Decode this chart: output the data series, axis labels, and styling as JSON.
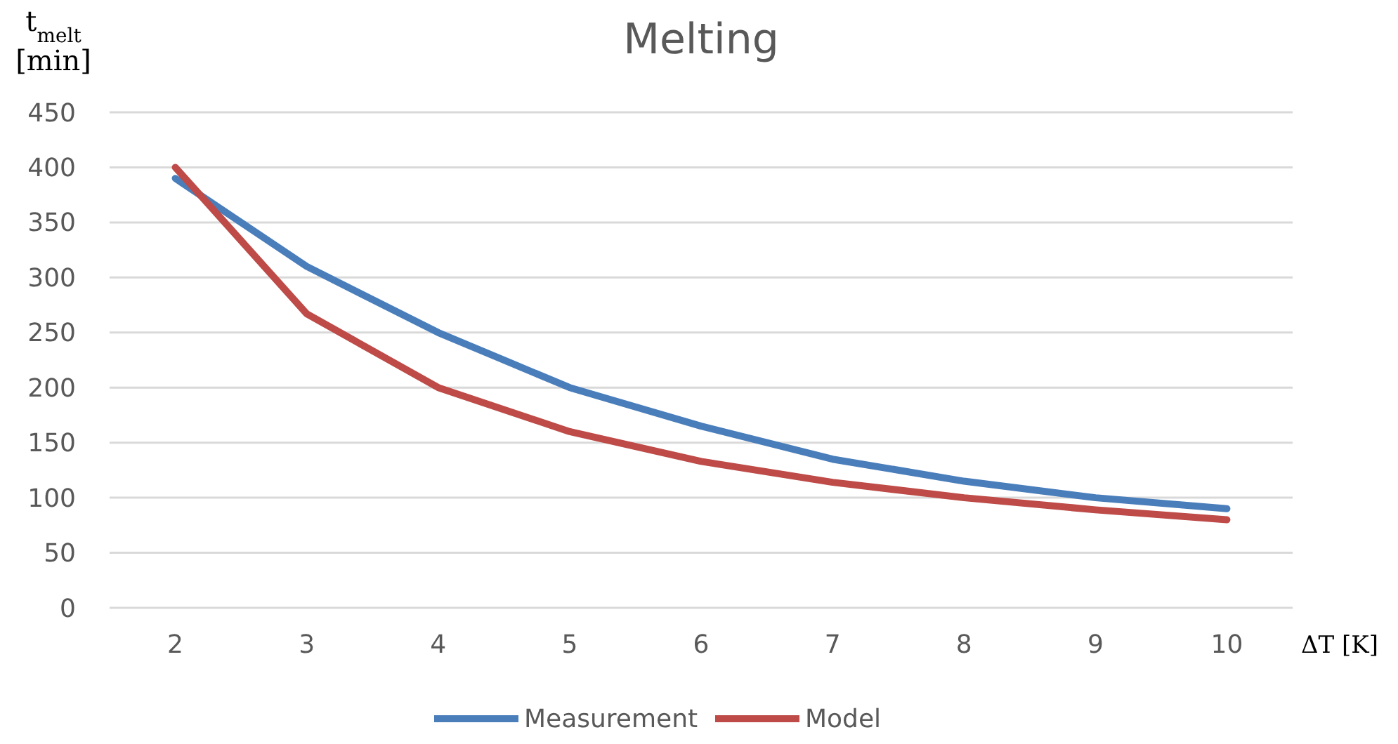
{
  "chart_data": {
    "type": "line",
    "title": "Melting",
    "xlabel": "ΔT [K]",
    "ylabel": "t$_{melt}$ [min]",
    "categories": [
      "2",
      "3",
      "4",
      "5",
      "6",
      "7",
      "8",
      "9",
      "10"
    ],
    "series": [
      {
        "name": "Measurement",
        "color": "#4a7ebb",
        "values": [
          390,
          310,
          250,
          200,
          165,
          135,
          115,
          100,
          90
        ]
      },
      {
        "name": "Model",
        "color": "#be4b48",
        "values": [
          400,
          267,
          200,
          160,
          133,
          114,
          100,
          89,
          80
        ]
      }
    ],
    "ylim": [
      0,
      450
    ],
    "yticks": [
      0,
      50,
      100,
      150,
      200,
      250,
      300,
      350,
      400,
      450
    ],
    "grid": "y",
    "legend": "bottom",
    "marker": "none",
    "line_style": "solid"
  }
}
